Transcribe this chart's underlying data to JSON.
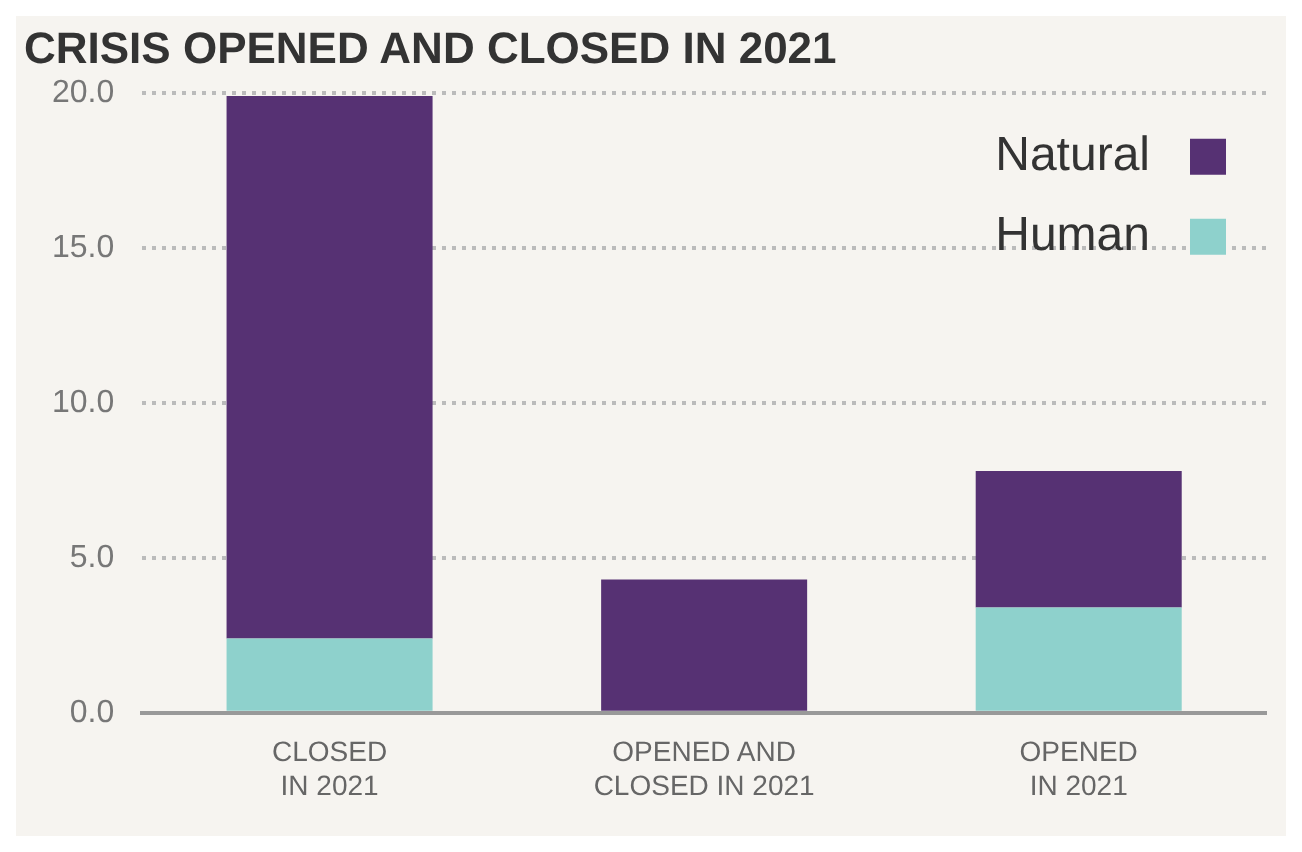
{
  "chart_data": {
    "type": "bar",
    "title": "CRISIS OPENED AND CLOSED IN 2021",
    "categories": [
      "CLOSED\nIN 2021",
      "OPENED AND\nCLOSED IN 2021",
      "OPENED\nIN 2021"
    ],
    "stacked": true,
    "series": [
      {
        "name": "Human",
        "color": "#8ed1cc",
        "values": [
          2.4,
          0,
          3.4
        ]
      },
      {
        "name": "Natural",
        "color": "#563173",
        "values": [
          17.5,
          4.3,
          4.4
        ]
      }
    ],
    "ylim": [
      0,
      20
    ],
    "yticks": [
      {
        "value": 0,
        "label": "0.0"
      },
      {
        "value": 5,
        "label": "5.0"
      },
      {
        "value": 10,
        "label": "10.0"
      },
      {
        "value": 15,
        "label": "15.0"
      },
      {
        "value": 20,
        "label": "20.0"
      }
    ],
    "grid": "y",
    "legend": "top right"
  }
}
